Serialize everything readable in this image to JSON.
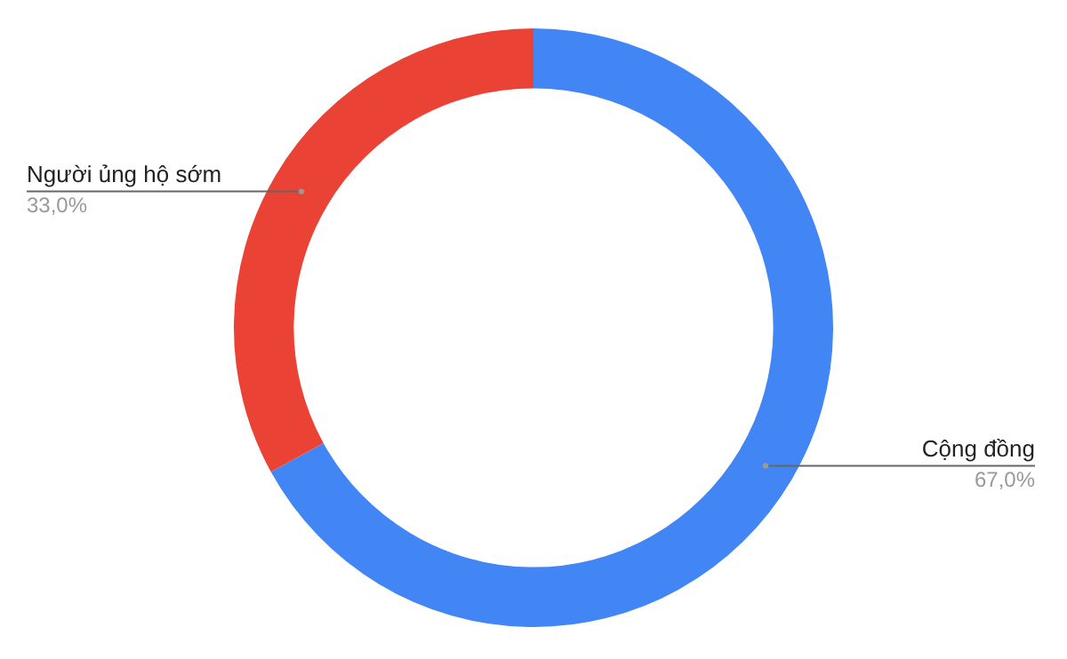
{
  "chart_data": {
    "type": "donut",
    "categories": [
      "Cộng đồng",
      "Người ủng hộ sớm"
    ],
    "values": [
      67,
      33
    ],
    "colors": [
      "#4285f4",
      "#ea4335"
    ],
    "value_labels": [
      "67,0%",
      "33,0%"
    ],
    "legend": false
  }
}
